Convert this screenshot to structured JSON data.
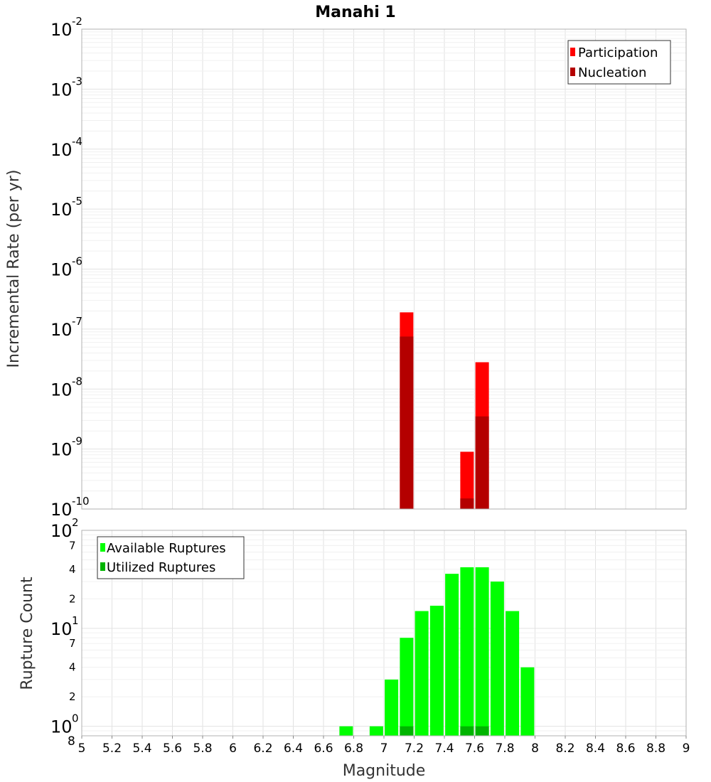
{
  "chart_data": [
    {
      "type": "bar",
      "title": "Manahi 1",
      "ylabel": "Incremental Rate (per yr)",
      "xlabel": "",
      "yscale": "log",
      "ylim": [
        1e-10,
        0.01
      ],
      "xlim": [
        5,
        9
      ],
      "grid": true,
      "legend_placement": "top-right",
      "y_tick_bases": [
        "10",
        "10",
        "10",
        "10",
        "10",
        "10",
        "10",
        "10",
        "10"
      ],
      "y_tick_exponents": [
        "-10",
        "-9",
        "-8",
        "-7",
        "-6",
        "-5",
        "-4",
        "-3",
        "-2"
      ],
      "y_tick_values": [
        1e-10,
        1e-09,
        1e-08,
        1e-07,
        1e-06,
        1e-05,
        0.0001,
        0.001,
        0.01
      ],
      "series": [
        {
          "name": "Participation",
          "color": "#ff0000",
          "points": [
            {
              "x": 7.15,
              "y": 1.9e-07
            },
            {
              "x": 7.55,
              "y": 9e-10
            },
            {
              "x": 7.65,
              "y": 2.8e-08
            }
          ]
        },
        {
          "name": "Nucleation",
          "color": "#b40000",
          "points": [
            {
              "x": 7.15,
              "y": 7.5e-08
            },
            {
              "x": 7.55,
              "y": 1.5e-10
            },
            {
              "x": 7.65,
              "y": 3.5e-09
            }
          ]
        }
      ]
    },
    {
      "type": "bar",
      "title": "",
      "ylabel": "Rupture Count",
      "xlabel": "Magnitude",
      "yscale": "log",
      "ylim": [
        0.8,
        100
      ],
      "xlim": [
        5,
        9
      ],
      "grid": true,
      "legend_placement": "top-left",
      "x_ticks": [
        "5",
        "5.2",
        "5.4",
        "5.6",
        "5.8",
        "6",
        "6.2",
        "6.4",
        "6.6",
        "6.8",
        "7",
        "7.2",
        "7.4",
        "7.6",
        "7.8",
        "8",
        "8.2",
        "8.4",
        "8.6",
        "8.8",
        "9"
      ],
      "y_major_ticks": [
        {
          "value": 1,
          "base": "10",
          "exp": "0"
        },
        {
          "value": 10,
          "base": "10",
          "exp": "1"
        },
        {
          "value": 100,
          "base": "10",
          "exp": "2"
        }
      ],
      "y_minor_ticks": [
        {
          "value": 0.8,
          "label": "8"
        },
        {
          "value": 2,
          "label": "2"
        },
        {
          "value": 4,
          "label": "4"
        },
        {
          "value": 7,
          "label": "7"
        },
        {
          "value": 20,
          "label": "2"
        },
        {
          "value": 40,
          "label": "4"
        },
        {
          "value": 70,
          "label": "7"
        }
      ],
      "series": [
        {
          "name": "Available Ruptures",
          "color": "#00ff00",
          "points": [
            {
              "x": 6.75,
              "y": 1
            },
            {
              "x": 6.95,
              "y": 1
            },
            {
              "x": 7.05,
              "y": 3
            },
            {
              "x": 7.15,
              "y": 8
            },
            {
              "x": 7.25,
              "y": 15
            },
            {
              "x": 7.35,
              "y": 17
            },
            {
              "x": 7.45,
              "y": 36
            },
            {
              "x": 7.55,
              "y": 42
            },
            {
              "x": 7.65,
              "y": 42
            },
            {
              "x": 7.75,
              "y": 30
            },
            {
              "x": 7.85,
              "y": 15
            },
            {
              "x": 7.95,
              "y": 4
            }
          ]
        },
        {
          "name": "Utilized Ruptures",
          "color": "#00b400",
          "points": [
            {
              "x": 7.15,
              "y": 1
            },
            {
              "x": 7.55,
              "y": 1
            },
            {
              "x": 7.65,
              "y": 1
            }
          ]
        }
      ]
    }
  ]
}
